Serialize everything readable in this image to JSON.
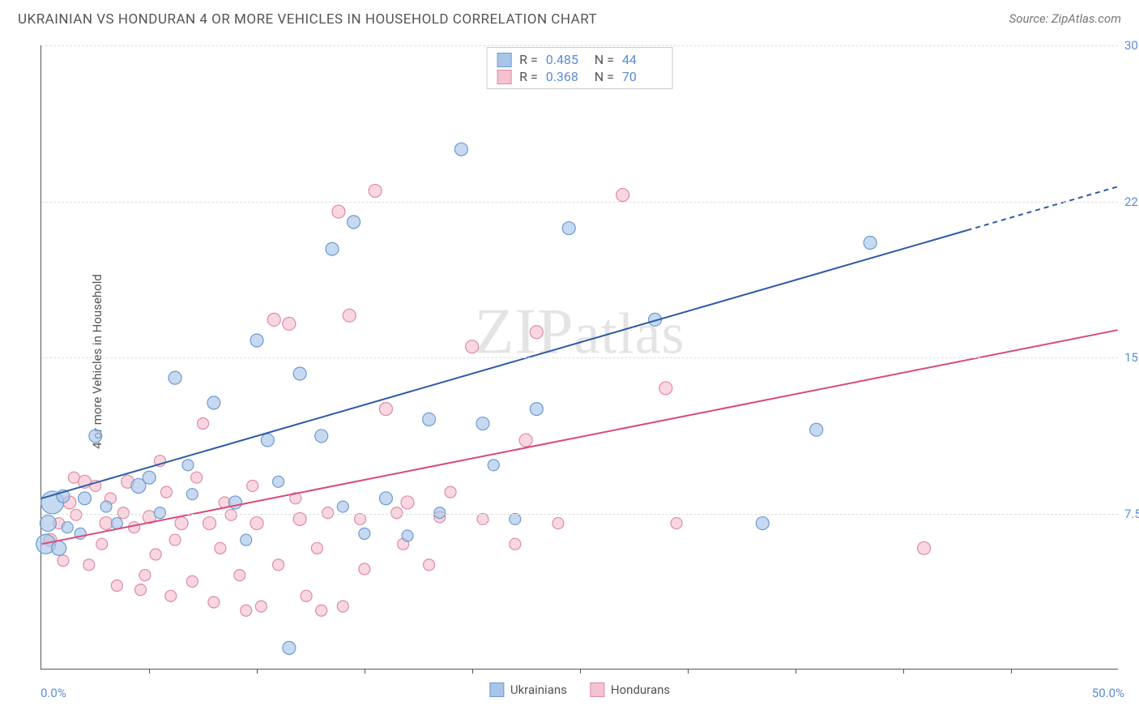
{
  "title": "UKRAINIAN VS HONDURAN 4 OR MORE VEHICLES IN HOUSEHOLD CORRELATION CHART",
  "source": "Source: ZipAtlas.com",
  "watermark": "ZIPatlas",
  "ylabel": "4 or more Vehicles in Household",
  "chart": {
    "type": "scatter",
    "xlim": [
      0,
      50
    ],
    "ylim": [
      0,
      30
    ],
    "xaxis_min_label": "0.0%",
    "xaxis_max_label": "50.0%",
    "yticks": [
      7.5,
      15.0,
      22.5,
      30.0
    ],
    "ytick_labels": [
      "7.5%",
      "15.0%",
      "22.5%",
      "30.0%"
    ],
    "xtick_positions": [
      5,
      10,
      15,
      20,
      25,
      30,
      35,
      40,
      45
    ],
    "background_color": "#ffffff",
    "grid_color": "#dddddd",
    "axis_color": "#555555",
    "tick_label_color": "#5b8dd6",
    "series": [
      {
        "name": "Ukrainians",
        "color_fill": "#a8c5e8",
        "color_stroke": "#6b9bd1",
        "opacity": 0.65,
        "r_label": "R =",
        "r_value": "0.485",
        "n_label": "N =",
        "n_value": "44",
        "trend": {
          "x1": 0,
          "y1": 8.2,
          "x2": 50,
          "y2": 23.2,
          "dash_from_x": 43,
          "color": "#2e5aa8",
          "width": 2
        },
        "points": [
          {
            "x": 0.2,
            "y": 6.0,
            "r": 12
          },
          {
            "x": 0.5,
            "y": 8.0,
            "r": 14
          },
          {
            "x": 0.3,
            "y": 7.0,
            "r": 10
          },
          {
            "x": 1.0,
            "y": 8.3,
            "r": 8
          },
          {
            "x": 1.2,
            "y": 6.8,
            "r": 7
          },
          {
            "x": 2.0,
            "y": 8.2,
            "r": 8
          },
          {
            "x": 2.5,
            "y": 11.2,
            "r": 8
          },
          {
            "x": 3.0,
            "y": 7.8,
            "r": 7
          },
          {
            "x": 4.5,
            "y": 8.8,
            "r": 9
          },
          {
            "x": 5.0,
            "y": 9.2,
            "r": 8
          },
          {
            "x": 6.2,
            "y": 14.0,
            "r": 8
          },
          {
            "x": 7.0,
            "y": 8.4,
            "r": 7
          },
          {
            "x": 8.0,
            "y": 12.8,
            "r": 8
          },
          {
            "x": 9.0,
            "y": 8.0,
            "r": 8
          },
          {
            "x": 10.0,
            "y": 15.8,
            "r": 8
          },
          {
            "x": 10.5,
            "y": 11.0,
            "r": 8
          },
          {
            "x": 11.5,
            "y": 1.0,
            "r": 8
          },
          {
            "x": 12.0,
            "y": 14.2,
            "r": 8
          },
          {
            "x": 13.0,
            "y": 11.2,
            "r": 8
          },
          {
            "x": 13.5,
            "y": 20.2,
            "r": 8
          },
          {
            "x": 14.0,
            "y": 7.8,
            "r": 7
          },
          {
            "x": 14.5,
            "y": 21.5,
            "r": 8
          },
          {
            "x": 15.0,
            "y": 6.5,
            "r": 7
          },
          {
            "x": 16.0,
            "y": 8.2,
            "r": 8
          },
          {
            "x": 17.0,
            "y": 6.4,
            "r": 7
          },
          {
            "x": 18.0,
            "y": 12.0,
            "r": 8
          },
          {
            "x": 19.5,
            "y": 25.0,
            "r": 8
          },
          {
            "x": 20.5,
            "y": 11.8,
            "r": 8
          },
          {
            "x": 21.0,
            "y": 9.8,
            "r": 7
          },
          {
            "x": 23.0,
            "y": 12.5,
            "r": 8
          },
          {
            "x": 24.5,
            "y": 21.2,
            "r": 8
          },
          {
            "x": 28.5,
            "y": 16.8,
            "r": 8
          },
          {
            "x": 33.5,
            "y": 7.0,
            "r": 8
          },
          {
            "x": 36.0,
            "y": 11.5,
            "r": 8
          },
          {
            "x": 38.5,
            "y": 20.5,
            "r": 8
          },
          {
            "x": 18.5,
            "y": 7.5,
            "r": 7
          },
          {
            "x": 6.8,
            "y": 9.8,
            "r": 7
          },
          {
            "x": 3.5,
            "y": 7.0,
            "r": 7
          },
          {
            "x": 1.8,
            "y": 6.5,
            "r": 7
          },
          {
            "x": 0.8,
            "y": 5.8,
            "r": 9
          },
          {
            "x": 11.0,
            "y": 9.0,
            "r": 7
          },
          {
            "x": 9.5,
            "y": 6.2,
            "r": 7
          },
          {
            "x": 5.5,
            "y": 7.5,
            "r": 7
          },
          {
            "x": 22.0,
            "y": 7.2,
            "r": 7
          }
        ]
      },
      {
        "name": "Hondurans",
        "color_fill": "#f4c2d0",
        "color_stroke": "#e08aa5",
        "opacity": 0.65,
        "r_label": "R =",
        "r_value": "0.368",
        "n_label": "N =",
        "n_value": "70",
        "trend": {
          "x1": 0,
          "y1": 6.0,
          "x2": 50,
          "y2": 16.3,
          "dash_from_x": 50,
          "color": "#d84a7a",
          "width": 2
        },
        "points": [
          {
            "x": 0.4,
            "y": 6.2,
            "r": 8
          },
          {
            "x": 0.8,
            "y": 7.0,
            "r": 7
          },
          {
            "x": 1.0,
            "y": 5.2,
            "r": 7
          },
          {
            "x": 1.3,
            "y": 8.0,
            "r": 8
          },
          {
            "x": 1.6,
            "y": 7.4,
            "r": 7
          },
          {
            "x": 2.0,
            "y": 9.0,
            "r": 8
          },
          {
            "x": 2.2,
            "y": 5.0,
            "r": 7
          },
          {
            "x": 2.5,
            "y": 8.8,
            "r": 7
          },
          {
            "x": 3.0,
            "y": 7.0,
            "r": 8
          },
          {
            "x": 3.2,
            "y": 8.2,
            "r": 7
          },
          {
            "x": 3.5,
            "y": 4.0,
            "r": 7
          },
          {
            "x": 3.8,
            "y": 7.5,
            "r": 7
          },
          {
            "x": 4.0,
            "y": 9.0,
            "r": 8
          },
          {
            "x": 4.3,
            "y": 6.8,
            "r": 7
          },
          {
            "x": 4.6,
            "y": 3.8,
            "r": 7
          },
          {
            "x": 5.0,
            "y": 7.3,
            "r": 8
          },
          {
            "x": 5.3,
            "y": 5.5,
            "r": 7
          },
          {
            "x": 5.8,
            "y": 8.5,
            "r": 7
          },
          {
            "x": 6.0,
            "y": 3.5,
            "r": 7
          },
          {
            "x": 6.5,
            "y": 7.0,
            "r": 8
          },
          {
            "x": 7.0,
            "y": 4.2,
            "r": 7
          },
          {
            "x": 7.2,
            "y": 9.2,
            "r": 7
          },
          {
            "x": 7.8,
            "y": 7.0,
            "r": 8
          },
          {
            "x": 8.0,
            "y": 3.2,
            "r": 7
          },
          {
            "x": 8.3,
            "y": 5.8,
            "r": 7
          },
          {
            "x": 8.8,
            "y": 7.4,
            "r": 7
          },
          {
            "x": 9.2,
            "y": 4.5,
            "r": 7
          },
          {
            "x": 9.5,
            "y": 2.8,
            "r": 7
          },
          {
            "x": 10.0,
            "y": 7.0,
            "r": 8
          },
          {
            "x": 10.2,
            "y": 3.0,
            "r": 7
          },
          {
            "x": 10.8,
            "y": 16.8,
            "r": 8
          },
          {
            "x": 11.0,
            "y": 5.0,
            "r": 7
          },
          {
            "x": 11.5,
            "y": 16.6,
            "r": 8
          },
          {
            "x": 12.0,
            "y": 7.2,
            "r": 8
          },
          {
            "x": 12.3,
            "y": 3.5,
            "r": 7
          },
          {
            "x": 12.8,
            "y": 5.8,
            "r": 7
          },
          {
            "x": 13.0,
            "y": 2.8,
            "r": 7
          },
          {
            "x": 13.3,
            "y": 7.5,
            "r": 7
          },
          {
            "x": 13.8,
            "y": 22.0,
            "r": 8
          },
          {
            "x": 14.0,
            "y": 3.0,
            "r": 7
          },
          {
            "x": 14.3,
            "y": 17.0,
            "r": 8
          },
          {
            "x": 14.8,
            "y": 7.2,
            "r": 7
          },
          {
            "x": 15.5,
            "y": 23.0,
            "r": 8
          },
          {
            "x": 16.0,
            "y": 12.5,
            "r": 8
          },
          {
            "x": 16.5,
            "y": 7.5,
            "r": 7
          },
          {
            "x": 17.0,
            "y": 8.0,
            "r": 8
          },
          {
            "x": 18.0,
            "y": 5.0,
            "r": 7
          },
          {
            "x": 18.5,
            "y": 7.3,
            "r": 7
          },
          {
            "x": 20.0,
            "y": 15.5,
            "r": 8
          },
          {
            "x": 20.5,
            "y": 7.2,
            "r": 7
          },
          {
            "x": 22.0,
            "y": 6.0,
            "r": 7
          },
          {
            "x": 22.5,
            "y": 11.0,
            "r": 8
          },
          {
            "x": 23.0,
            "y": 16.2,
            "r": 8
          },
          {
            "x": 24.0,
            "y": 7.0,
            "r": 7
          },
          {
            "x": 27.0,
            "y": 22.8,
            "r": 8
          },
          {
            "x": 29.0,
            "y": 13.5,
            "r": 8
          },
          {
            "x": 29.5,
            "y": 7.0,
            "r": 7
          },
          {
            "x": 41.0,
            "y": 5.8,
            "r": 8
          },
          {
            "x": 1.5,
            "y": 9.2,
            "r": 7
          },
          {
            "x": 2.8,
            "y": 6.0,
            "r": 7
          },
          {
            "x": 4.8,
            "y": 4.5,
            "r": 7
          },
          {
            "x": 6.2,
            "y": 6.2,
            "r": 7
          },
          {
            "x": 8.5,
            "y": 8.0,
            "r": 7
          },
          {
            "x": 11.8,
            "y": 8.2,
            "r": 7
          },
          {
            "x": 15.0,
            "y": 4.8,
            "r": 7
          },
          {
            "x": 16.8,
            "y": 6.0,
            "r": 7
          },
          {
            "x": 19.0,
            "y": 8.5,
            "r": 7
          },
          {
            "x": 9.8,
            "y": 8.8,
            "r": 7
          },
          {
            "x": 5.5,
            "y": 10.0,
            "r": 7
          },
          {
            "x": 7.5,
            "y": 11.8,
            "r": 7
          }
        ]
      }
    ]
  }
}
